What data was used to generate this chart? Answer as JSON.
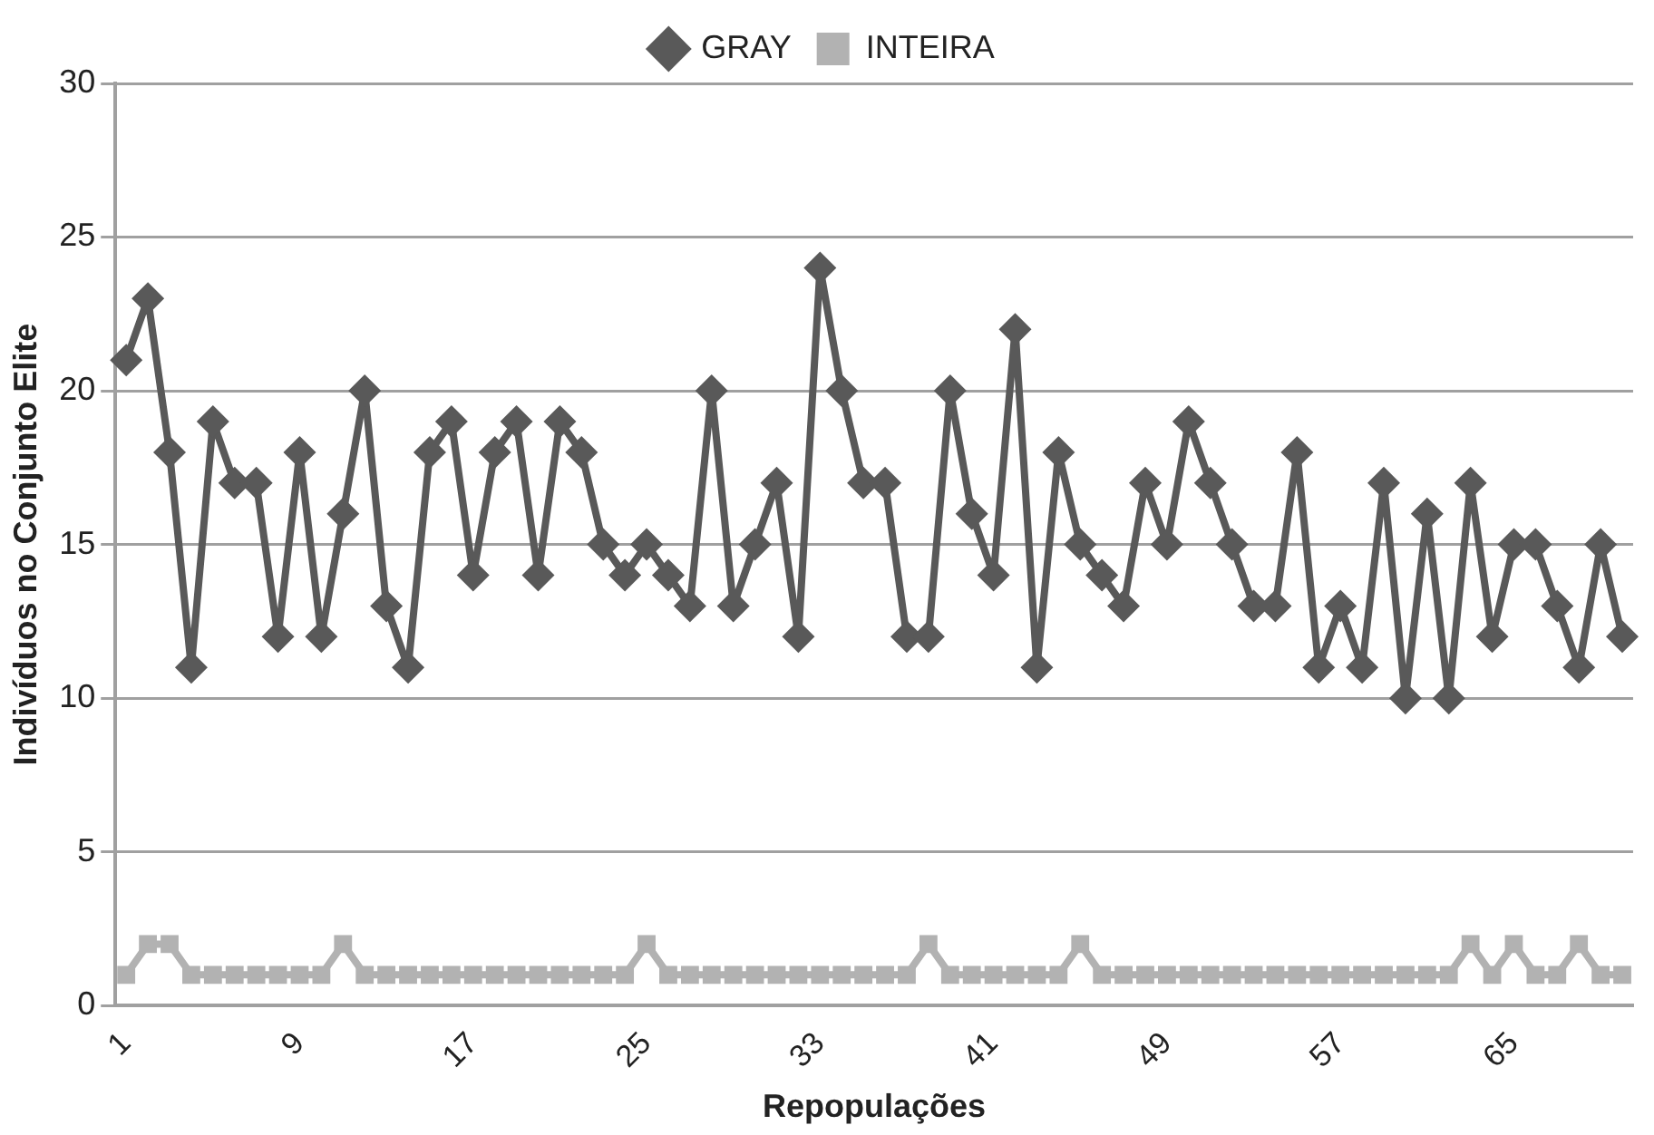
{
  "chart_data": {
    "type": "line",
    "xlabel": "Repopulações",
    "ylabel": "Indivíduos no Conjunto Elite",
    "categories": [
      "1",
      null,
      null,
      null,
      null,
      null,
      null,
      null,
      "9",
      null,
      null,
      null,
      null,
      null,
      null,
      null,
      "17",
      null,
      null,
      null,
      null,
      null,
      null,
      null,
      "25",
      null,
      null,
      null,
      null,
      null,
      null,
      null,
      "33",
      null,
      null,
      null,
      null,
      null,
      null,
      null,
      "41",
      null,
      null,
      null,
      null,
      null,
      null,
      null,
      "49",
      null,
      null,
      null,
      null,
      null,
      null,
      null,
      "57",
      null,
      null,
      null,
      null,
      null,
      null,
      null,
      "65",
      null,
      null,
      null,
      null,
      null
    ],
    "series": [
      {
        "name": "GRAY",
        "color": "#595959",
        "marker": "diamond",
        "values": [
          21,
          23,
          18,
          11,
          19,
          17,
          17,
          12,
          18,
          12,
          16,
          20,
          13,
          11,
          18,
          19,
          14,
          18,
          19,
          14,
          19,
          18,
          15,
          14,
          15,
          14,
          13,
          20,
          13,
          15,
          17,
          12,
          24,
          20,
          17,
          17,
          12,
          12,
          20,
          16,
          14,
          22,
          11,
          18,
          15,
          14,
          13,
          17,
          15,
          19,
          17,
          15,
          13,
          13,
          18,
          11,
          13,
          11,
          17,
          10,
          16,
          10,
          17,
          12,
          15,
          15,
          13,
          11,
          15,
          12
        ]
      },
      {
        "name": "INTEIRA",
        "color": "#b2b2b2",
        "marker": "square",
        "values": [
          1,
          2,
          2,
          1,
          1,
          1,
          1,
          1,
          1,
          1,
          2,
          1,
          1,
          1,
          1,
          1,
          1,
          1,
          1,
          1,
          1,
          1,
          1,
          1,
          2,
          1,
          1,
          1,
          1,
          1,
          1,
          1,
          1,
          1,
          1,
          1,
          1,
          2,
          1,
          1,
          1,
          1,
          1,
          1,
          2,
          1,
          1,
          1,
          1,
          1,
          1,
          1,
          1,
          1,
          1,
          1,
          1,
          1,
          1,
          1,
          1,
          1,
          2,
          1,
          2,
          1,
          1,
          2,
          1,
          1
        ]
      }
    ],
    "ylim": [
      0,
      30
    ],
    "yticks": [
      0,
      5,
      10,
      15,
      20,
      25,
      30
    ],
    "grid": "y",
    "legend": "top",
    "line_style": "solid"
  }
}
